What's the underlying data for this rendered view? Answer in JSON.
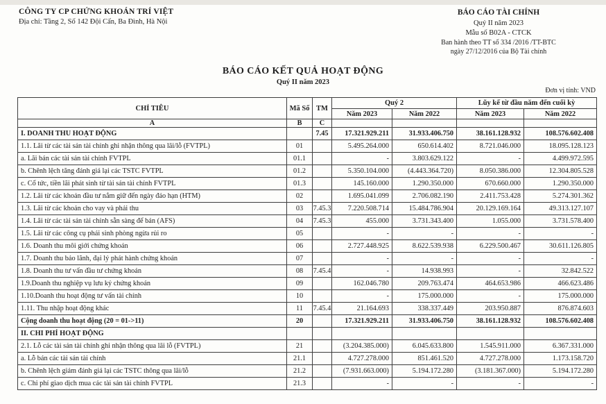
{
  "header": {
    "company_name": "CÔNG TY CP CHỨNG KHOÁN TRÍ VIỆT",
    "company_address": "Địa chỉ: Tầng 2, Số 142 Đội Cấn, Ba Đình, Hà Nội",
    "report_title": "BÁO CÁO TÀI CHÍNH",
    "report_period": "Quý II năm 2023",
    "form_number": "Mẫu số B02A - CTCK",
    "issued_line1": "Ban hành theo TT số 334 /2016 /TT-BTC",
    "issued_line2": "ngày 27/12/2016 của Bộ Tài chính"
  },
  "title": {
    "main": "BÁO CÁO KẾT QUẢ HOẠT ĐỘNG",
    "sub": "Quý II năm 2023"
  },
  "table": {
    "unit_label": "Đơn vị tính: VND",
    "headers": {
      "chi_tieu": "CHỈ TIÊU",
      "ma_so": "Mã Số",
      "tm": "TM",
      "quy2": "Quý 2",
      "luy_ke": "Lũy kế từ đầu năm đến cuối kỳ",
      "nam_2023": "Năm 2023",
      "nam_2022": "Năm 2022",
      "col_a": "A",
      "col_b": "B",
      "col_c": "C"
    },
    "rows": [
      {
        "label": "I. DOANH THU HOẠT ĐỘNG",
        "ma_so": "",
        "tm": "7.45",
        "values": [
          "17.321.929.211",
          "31.933.406.750",
          "38.161.128.932",
          "108.576.602.408"
        ],
        "bold": true
      },
      {
        "label": "1.1. Lãi từ các tài sản tài chính ghi nhận thông qua lãi/lỗ (FVTPL)",
        "ma_so": "01",
        "tm": "",
        "values": [
          "5.495.264.000",
          "650.614.402",
          "8.721.046.000",
          "18.095.128.123"
        ],
        "bold": false
      },
      {
        "label": "a. Lãi bán các tài sản tài chính FVTPL",
        "ma_so": "01.1",
        "tm": "",
        "values": [
          "-",
          "3.803.629.122",
          "-",
          "4.499.972.595"
        ],
        "bold": false
      },
      {
        "label": "b. Chênh lệch tăng đánh giá lại các TSTC FVTPL",
        "ma_so": "01.2",
        "tm": "",
        "values": [
          "5.350.104.000",
          "(4.443.364.720)",
          "8.050.386.000",
          "12.304.805.528"
        ],
        "bold": false
      },
      {
        "label": "c. Cổ tức, tiền lãi phát sinh từ tài sản tài chính FVTPL",
        "ma_so": "01.3",
        "tm": "",
        "values": [
          "145.160.000",
          "1.290.350.000",
          "670.660.000",
          "1.290.350.000"
        ],
        "bold": false
      },
      {
        "label": "1.2. Lãi từ các khoản đầu tư nắm giữ đến ngày đáo hạn (HTM)",
        "ma_so": "02",
        "tm": "",
        "values": [
          "1.695.041.099",
          "2.706.082.190",
          "2.411.753.428",
          "5.274.301.362"
        ],
        "bold": false
      },
      {
        "label": "1.3. Lãi từ các khoản cho vay và phải thu",
        "ma_so": "03",
        "tm": "7.45.3",
        "values": [
          "7.220.508.714",
          "15.484.786.904",
          "20.129.169.164",
          "49.313.127.107"
        ],
        "bold": false
      },
      {
        "label": "1.4. Lãi từ các tài sản tài chính sẵn sàng để bán (AFS)",
        "ma_so": "04",
        "tm": "7.45.3",
        "values": [
          "455.000",
          "3.731.343.400",
          "1.055.000",
          "3.731.578.400"
        ],
        "bold": false
      },
      {
        "label": "1.5. Lãi từ các công cụ phái sinh phòng ngừa rủi ro",
        "ma_so": "05",
        "tm": "",
        "values": [
          "-",
          "-",
          "-",
          "-"
        ],
        "bold": false
      },
      {
        "label": "1.6. Doanh thu môi giới chứng khoán",
        "ma_so": "06",
        "tm": "",
        "values": [
          "2.727.448.925",
          "8.622.539.938",
          "6.229.500.467",
          "30.611.126.805"
        ],
        "bold": false
      },
      {
        "label": "1.7. Doanh thu bảo lãnh, đại lý phát hành chứng khoán",
        "ma_so": "07",
        "tm": "",
        "values": [
          "-",
          "-",
          "-",
          "-"
        ],
        "bold": false
      },
      {
        "label": "1.8. Doanh thu tư vấn đầu tư chứng khoán",
        "ma_so": "08",
        "tm": "7.45.4",
        "values": [
          "-",
          "14.938.993",
          "-",
          "32.842.522"
        ],
        "bold": false
      },
      {
        "label": "1.9.Doanh thu nghiệp vụ lưu ký chứng khoán",
        "ma_so": "09",
        "tm": "",
        "values": [
          "162.046.780",
          "209.763.474",
          "464.653.986",
          "466.623.486"
        ],
        "bold": false
      },
      {
        "label": "1.10.Doanh thu hoạt động tư vấn tài chính",
        "ma_so": "10",
        "tm": "",
        "values": [
          "-",
          "175.000.000",
          "-",
          "175.000.000"
        ],
        "bold": false
      },
      {
        "label": "1.11. Thu nhập hoạt động khác",
        "ma_so": "11",
        "tm": "7.45.4",
        "values": [
          "21.164.693",
          "338.337.449",
          "203.950.887",
          "876.874.603"
        ],
        "bold": false
      },
      {
        "label": "Cộng doanh thu hoạt động (20 = 01->11)",
        "ma_so": "20",
        "tm": "",
        "values": [
          "17.321.929.211",
          "31.933.406.750",
          "38.161.128.932",
          "108.576.602.408"
        ],
        "bold": true
      },
      {
        "label": "II. CHI PHÍ HOẠT ĐỘNG",
        "ma_so": "",
        "tm": "",
        "values": [
          "",
          "",
          "",
          ""
        ],
        "bold": true
      },
      {
        "label": "2.1. Lỗ các tài sản tài chính ghi nhận thông qua lãi lỗ (FVTPL)",
        "ma_so": "21",
        "tm": "",
        "values": [
          "(3.204.385.000)",
          "6.045.633.800",
          "1.545.911.000",
          "6.367.331.000"
        ],
        "bold": false
      },
      {
        "label": "a. Lỗ bán các tài sản tài chính",
        "ma_so": "21.1",
        "tm": "",
        "values": [
          "4.727.278.000",
          "851.461.520",
          "4.727.278.000",
          "1.173.158.720"
        ],
        "bold": false
      },
      {
        "label": "b. Chênh lệch giảm đánh giá lại các TSTC thông qua lãi/lỗ",
        "ma_so": "21.2",
        "tm": "",
        "values": [
          "(7.931.663.000)",
          "5.194.172.280",
          "(3.181.367.000)",
          "5.194.172.280"
        ],
        "bold": false
      },
      {
        "label": "c. Chi phí giao dịch mua các tài sản tài chính FVTPL",
        "ma_so": "21.3",
        "tm": "",
        "values": [
          "-",
          "-",
          "-",
          "-"
        ],
        "bold": false
      }
    ]
  }
}
